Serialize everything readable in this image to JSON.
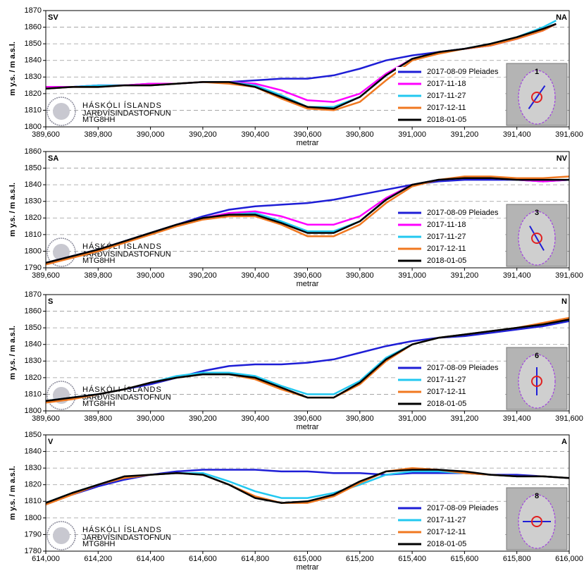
{
  "chart_data": [
    {
      "type": "line",
      "xlabel": "metrar",
      "ylabel": "m y.s. / m a.s.l.",
      "annotations": {
        "left": "SV",
        "right": "NA",
        "inset_number": "1"
      },
      "logo": [
        "HÁSKÓLI ÍSLANDS",
        "JARÐVÍSINDASTOFNUN",
        "MTG8HH"
      ],
      "xlim": [
        389600,
        391600
      ],
      "ylim": [
        1800,
        1870
      ],
      "grid": true,
      "xticks": [
        {
          "value": 389600,
          "label": "389,600"
        },
        {
          "value": 389800,
          "label": "389,800"
        },
        {
          "value": 390000,
          "label": "390,000"
        },
        {
          "value": 390200,
          "label": "390,200"
        },
        {
          "value": 390400,
          "label": "390,400"
        },
        {
          "value": 390600,
          "label": "390,600"
        },
        {
          "value": 390800,
          "label": "390,800"
        },
        {
          "value": 391000,
          "label": "391,000"
        },
        {
          "value": 391200,
          "label": "391,200"
        },
        {
          "value": 391400,
          "label": "391,400"
        },
        {
          "value": 391600,
          "label": "391,600"
        }
      ],
      "yticks": [
        1800,
        1810,
        1820,
        1830,
        1840,
        1850,
        1860,
        1870
      ],
      "x": [
        389600,
        389700,
        389800,
        389900,
        390000,
        390100,
        390200,
        390300,
        390400,
        390500,
        390600,
        390700,
        390800,
        390900,
        391000,
        391100,
        391200,
        391300,
        391400,
        391500,
        391550
      ],
      "series": [
        {
          "name": "2017-08-09 Pleiades",
          "color": "#1e1ed6",
          "values": [
            1824,
            1824,
            1825,
            1825,
            1826,
            1826,
            1827,
            1827,
            1828,
            1829,
            1829,
            1831,
            1835,
            1840,
            1843,
            1845,
            1847,
            1849,
            1853,
            1859,
            1862
          ]
        },
        {
          "name": "2017-11-18",
          "color": "#ff00ff",
          "values": [
            1824,
            1824,
            1825,
            1825,
            1826,
            1826,
            1827,
            1827,
            1826,
            1822,
            1816,
            1815,
            1820,
            1832,
            1841,
            1845,
            1847,
            1849,
            1853,
            1858,
            1862
          ]
        },
        {
          "name": "2017-11-27",
          "color": "#22c8f0",
          "values": [
            1823,
            1824,
            1825,
            1825,
            1825,
            1826,
            1827,
            1827,
            1825,
            1819,
            1812,
            1812,
            1818,
            1831,
            1841,
            1845,
            1847,
            1850,
            1854,
            1860,
            1864
          ]
        },
        {
          "name": "2017-12-11",
          "color": "#f07820",
          "values": [
            1823,
            1824,
            1824,
            1825,
            1825,
            1826,
            1827,
            1826,
            1824,
            1817,
            1811,
            1810,
            1815,
            1828,
            1840,
            1844,
            1847,
            1849,
            1853,
            1858,
            1862
          ]
        },
        {
          "name": "2018-01-05",
          "color": "#000000",
          "values": [
            1823,
            1824,
            1824,
            1825,
            1825,
            1826,
            1827,
            1827,
            1824,
            1818,
            1812,
            1811,
            1818,
            1831,
            1841,
            1845,
            1847,
            1850,
            1854,
            1859,
            1862
          ]
        }
      ]
    },
    {
      "type": "line",
      "xlabel": "metrar",
      "ylabel": "m y.s. / m a.s.l.",
      "annotations": {
        "left": "SA",
        "right": "NV",
        "inset_number": "3"
      },
      "logo": [
        "HÁSKÓLI ÍSLANDS",
        "JARÐVÍSINDASTOFNUN",
        "MTG8HH"
      ],
      "xlim": [
        389600,
        391600
      ],
      "ylim": [
        1790,
        1860
      ],
      "grid": true,
      "xticks": [
        {
          "value": 389600,
          "label": "389,600"
        },
        {
          "value": 389800,
          "label": "389,800"
        },
        {
          "value": 390000,
          "label": "390,000"
        },
        {
          "value": 390200,
          "label": "390,200"
        },
        {
          "value": 390400,
          "label": "390,400"
        },
        {
          "value": 390600,
          "label": "390,600"
        },
        {
          "value": 390800,
          "label": "390,800"
        },
        {
          "value": 391000,
          "label": "391,000"
        },
        {
          "value": 391200,
          "label": "391,200"
        },
        {
          "value": 391400,
          "label": "391,400"
        },
        {
          "value": 391600,
          "label": "391,600"
        }
      ],
      "yticks": [
        1790,
        1800,
        1810,
        1820,
        1830,
        1840,
        1850,
        1860
      ],
      "x": [
        389600,
        389700,
        389800,
        389900,
        390000,
        390100,
        390200,
        390300,
        390400,
        390500,
        390600,
        390700,
        390800,
        390900,
        391000,
        391100,
        391200,
        391300,
        391400,
        391500,
        391600
      ],
      "series": [
        {
          "name": "2017-08-09 Pleiades",
          "color": "#1e1ed6",
          "values": [
            1793,
            1797,
            1801,
            1806,
            1811,
            1816,
            1821,
            1825,
            1827,
            1828,
            1829,
            1831,
            1834,
            1837,
            1840,
            1842,
            1843,
            1843,
            1843,
            1842,
            1843
          ]
        },
        {
          "name": "2017-11-18",
          "color": "#ff00ff",
          "values": [
            1793,
            1797,
            1801,
            1806,
            1811,
            1816,
            1820,
            1823,
            1824,
            1821,
            1816,
            1816,
            1821,
            1832,
            1840,
            1843,
            1844,
            1844,
            1843,
            1842,
            1843
          ]
        },
        {
          "name": "2017-11-27",
          "color": "#22c8f0",
          "values": [
            1793,
            1797,
            1801,
            1806,
            1811,
            1816,
            1820,
            1822,
            1823,
            1818,
            1812,
            1812,
            1818,
            1831,
            1840,
            1843,
            1844,
            1844,
            1843,
            1843,
            1843
          ]
        },
        {
          "name": "2017-12-11",
          "color": "#f07820",
          "values": [
            1792,
            1796,
            1800,
            1805,
            1810,
            1815,
            1819,
            1821,
            1821,
            1816,
            1809,
            1809,
            1816,
            1829,
            1839,
            1843,
            1845,
            1845,
            1844,
            1844,
            1845
          ]
        },
        {
          "name": "2018-01-05",
          "color": "#000000",
          "values": [
            1793,
            1797,
            1801,
            1806,
            1811,
            1816,
            1820,
            1822,
            1822,
            1817,
            1811,
            1811,
            1818,
            1831,
            1840,
            1843,
            1844,
            1844,
            1843,
            1843,
            1843
          ]
        }
      ]
    },
    {
      "type": "line",
      "xlabel": "metrar",
      "ylabel": "m y.s. / m a.s.l.",
      "annotations": {
        "left": "S",
        "right": "N",
        "inset_number": "6"
      },
      "logo": [
        "HÁSKÓLI ÍSLANDS",
        "JARÐVÍSINDASTOFNUN",
        "MTG8HH"
      ],
      "xlim": [
        389600,
        391600
      ],
      "ylim": [
        1800,
        1870
      ],
      "grid": true,
      "xticks": [
        {
          "value": 389600,
          "label": "389,600"
        },
        {
          "value": 389800,
          "label": "389,800"
        },
        {
          "value": 390000,
          "label": "390,000"
        },
        {
          "value": 390200,
          "label": "390,200"
        },
        {
          "value": 390400,
          "label": "390,400"
        },
        {
          "value": 390600,
          "label": "390,600"
        },
        {
          "value": 390800,
          "label": "390,800"
        },
        {
          "value": 391000,
          "label": "391,000"
        },
        {
          "value": 391200,
          "label": "391,200"
        },
        {
          "value": 391400,
          "label": "391,400"
        },
        {
          "value": 391600,
          "label": "391,600"
        }
      ],
      "yticks": [
        1800,
        1810,
        1820,
        1830,
        1840,
        1850,
        1860,
        1870
      ],
      "x": [
        389600,
        389700,
        389800,
        389900,
        390000,
        390100,
        390200,
        390300,
        390400,
        390500,
        390600,
        390700,
        390800,
        390900,
        391000,
        391100,
        391200,
        391300,
        391400,
        391500,
        391600
      ],
      "series": [
        {
          "name": "2017-08-09 Pleiades",
          "color": "#1e1ed6",
          "values": [
            1806,
            1808,
            1810,
            1813,
            1816,
            1820,
            1824,
            1827,
            1828,
            1828,
            1829,
            1831,
            1835,
            1839,
            1842,
            1844,
            1845,
            1847,
            1849,
            1851,
            1854
          ]
        },
        {
          "name": "2017-11-27",
          "color": "#22c8f0",
          "values": [
            1806,
            1808,
            1810,
            1813,
            1817,
            1821,
            1823,
            1823,
            1821,
            1815,
            1810,
            1810,
            1818,
            1832,
            1840,
            1844,
            1846,
            1848,
            1850,
            1852,
            1855
          ]
        },
        {
          "name": "2017-12-11",
          "color": "#f07820",
          "values": [
            1805,
            1807,
            1810,
            1813,
            1817,
            1820,
            1822,
            1822,
            1819,
            1813,
            1808,
            1808,
            1816,
            1830,
            1840,
            1844,
            1846,
            1848,
            1850,
            1853,
            1856
          ]
        },
        {
          "name": "2018-01-05",
          "color": "#000000",
          "values": [
            1806,
            1808,
            1810,
            1813,
            1817,
            1820,
            1822,
            1822,
            1820,
            1814,
            1808,
            1808,
            1817,
            1831,
            1840,
            1844,
            1846,
            1848,
            1850,
            1852,
            1855
          ]
        }
      ]
    },
    {
      "type": "line",
      "xlabel": "metrar",
      "ylabel": "m y.s. / m a.s.l.",
      "annotations": {
        "left": "V",
        "right": "A",
        "inset_number": "8"
      },
      "logo": [
        "HÁSKÓLI ÍSLANDS",
        "JARÐVÍSINDASTOFNUN",
        "MTG8HH"
      ],
      "xlim": [
        614000,
        616000
      ],
      "ylim": [
        1780,
        1850
      ],
      "grid": true,
      "xticks": [
        {
          "value": 614000,
          "label": "614,000"
        },
        {
          "value": 614200,
          "label": "614,200"
        },
        {
          "value": 614400,
          "label": "614,400"
        },
        {
          "value": 614600,
          "label": "614,600"
        },
        {
          "value": 614800,
          "label": "614,800"
        },
        {
          "value": 615000,
          "label": "615,000"
        },
        {
          "value": 615200,
          "label": "615,200"
        },
        {
          "value": 615400,
          "label": "615,400"
        },
        {
          "value": 615600,
          "label": "615,600"
        },
        {
          "value": 615800,
          "label": "615,800"
        },
        {
          "value": 616000,
          "label": "616,000"
        }
      ],
      "yticks": [
        1780,
        1790,
        1800,
        1810,
        1820,
        1830,
        1840,
        1850
      ],
      "x": [
        614000,
        614100,
        614200,
        614300,
        614400,
        614500,
        614600,
        614700,
        614800,
        614900,
        615000,
        615100,
        615200,
        615300,
        615400,
        615500,
        615600,
        615700,
        615800,
        615900,
        616000
      ],
      "series": [
        {
          "name": "2017-08-09 Pleiades",
          "color": "#1e1ed6",
          "values": [
            1809,
            1814,
            1819,
            1823,
            1826,
            1828,
            1829,
            1829,
            1829,
            1828,
            1828,
            1827,
            1827,
            1826,
            1827,
            1827,
            1827,
            1826,
            1826,
            1825,
            1824
          ]
        },
        {
          "name": "2017-11-27",
          "color": "#22c8f0",
          "values": [
            1809,
            1815,
            1820,
            1824,
            1826,
            1827,
            1827,
            1822,
            1816,
            1812,
            1812,
            1815,
            1820,
            1826,
            1828,
            1828,
            1827,
            1826,
            1825,
            1825,
            1824
          ]
        },
        {
          "name": "2017-12-11",
          "color": "#f07820",
          "values": [
            1808,
            1814,
            1820,
            1824,
            1826,
            1827,
            1826,
            1820,
            1813,
            1809,
            1809,
            1813,
            1821,
            1828,
            1830,
            1829,
            1827,
            1826,
            1825,
            1825,
            1824
          ]
        },
        {
          "name": "2018-01-05",
          "color": "#000000",
          "values": [
            1809,
            1815,
            1820,
            1825,
            1826,
            1827,
            1826,
            1820,
            1812,
            1809,
            1810,
            1814,
            1822,
            1828,
            1829,
            1829,
            1828,
            1826,
            1825,
            1825,
            1824
          ]
        }
      ]
    }
  ]
}
